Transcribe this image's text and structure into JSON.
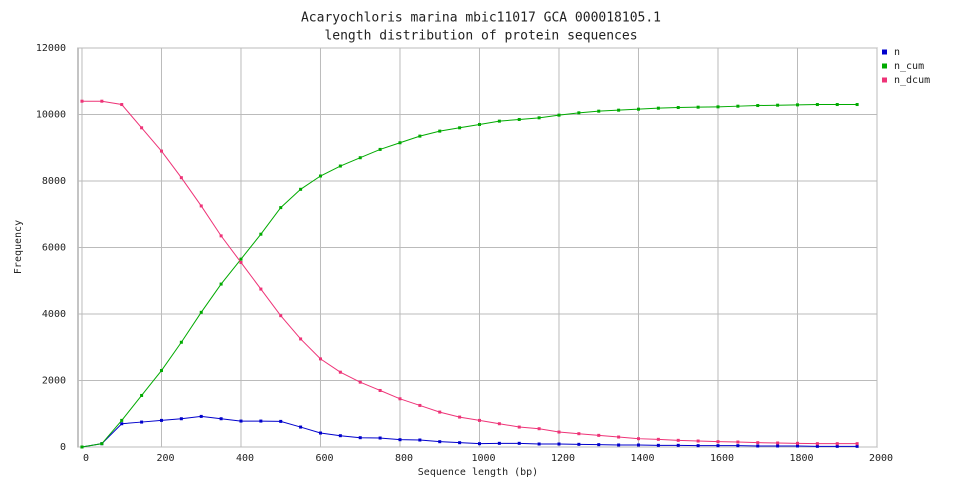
{
  "chart_data": {
    "type": "line",
    "title": "Acaryochloris marina mbic11017 GCA 000018105.1",
    "subtitle": "length distribution of protein sequences",
    "xlabel": "Sequence length (bp)",
    "ylabel": "Frequency",
    "x": [
      0,
      50,
      100,
      150,
      200,
      250,
      300,
      350,
      400,
      450,
      500,
      550,
      600,
      650,
      700,
      750,
      800,
      850,
      900,
      950,
      1000,
      1050,
      1100,
      1150,
      1200,
      1250,
      1300,
      1350,
      1400,
      1450,
      1500,
      1550,
      1600,
      1650,
      1700,
      1750,
      1800,
      1850,
      1900,
      1950
    ],
    "series": [
      {
        "name": "n",
        "color": "#0000cc",
        "values": [
          0,
          100,
          700,
          750,
          800,
          850,
          920,
          850,
          780,
          780,
          770,
          600,
          420,
          340,
          280,
          270,
          220,
          210,
          160,
          130,
          100,
          110,
          110,
          90,
          90,
          80,
          70,
          60,
          60,
          50,
          50,
          40,
          40,
          40,
          30,
          30,
          30,
          20,
          20,
          20
        ]
      },
      {
        "name": "n_cum",
        "color": "#00aa00",
        "values": [
          0,
          100,
          800,
          1550,
          2300,
          3150,
          4050,
          4900,
          5650,
          6400,
          7200,
          7750,
          8150,
          8450,
          8700,
          8950,
          9150,
          9350,
          9500,
          9600,
          9700,
          9800,
          9850,
          9900,
          9980,
          10050,
          10100,
          10130,
          10160,
          10190,
          10210,
          10220,
          10230,
          10250,
          10270,
          10280,
          10290,
          10300,
          10300,
          10300
        ]
      },
      {
        "name": "n_dcum",
        "color": "#ee3377",
        "values": [
          10400,
          10400,
          10300,
          9600,
          8900,
          8100,
          7250,
          6350,
          5550,
          4750,
          3950,
          3250,
          2650,
          2250,
          1950,
          1700,
          1450,
          1250,
          1050,
          900,
          800,
          700,
          600,
          550,
          450,
          400,
          350,
          300,
          250,
          230,
          200,
          180,
          160,
          150,
          130,
          120,
          110,
          100,
          100,
          100
        ]
      }
    ],
    "xlim": [
      -10,
      2000
    ],
    "xticks": [
      0,
      200,
      400,
      600,
      800,
      1000,
      1200,
      1400,
      1600,
      1800,
      2000
    ],
    "ylim": [
      0,
      12000
    ],
    "yticks": [
      0,
      2000,
      4000,
      6000,
      8000,
      10000,
      12000
    ],
    "grid": true,
    "legend": "top-right"
  }
}
